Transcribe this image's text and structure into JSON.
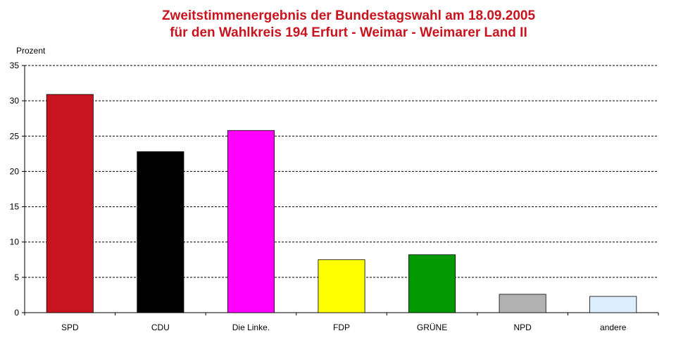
{
  "chart_data": {
    "type": "bar",
    "title": "Zweitstimmenergebnis der Bundestagswahl am 18.09.2005",
    "subtitle": "für den Wahlkreis 194 Erfurt - Weimar - Weimarer Land II",
    "ylabel": "Prozent",
    "xlabel": "",
    "ylim": [
      0,
      35
    ],
    "yticks": [
      0,
      5,
      10,
      15,
      20,
      25,
      30,
      35
    ],
    "grid": true,
    "legend": "none",
    "categories": [
      "SPD",
      "CDU",
      "Die Linke.",
      "FDP",
      "GRÜNE",
      "NPD",
      "andere"
    ],
    "values": [
      30.9,
      22.8,
      25.8,
      7.5,
      8.2,
      2.6,
      2.3
    ],
    "colors": [
      "#c8141e",
      "#000000",
      "#ff00ff",
      "#ffff00",
      "#009900",
      "#b2b2b2",
      "#ddeeff"
    ],
    "title_color": "#c8141e"
  }
}
